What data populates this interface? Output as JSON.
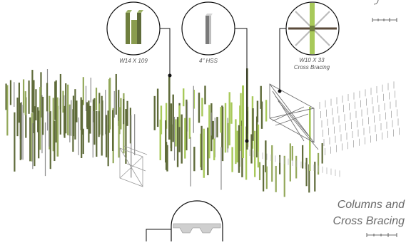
{
  "title": {
    "line1": "Columns and",
    "line2": "Cross Bracing"
  },
  "callouts": [
    {
      "label": "W14 X 109"
    },
    {
      "label": "4\" HSS"
    },
    {
      "label_line1": "W10 X 33",
      "label_line2": "Cross Bracing"
    }
  ],
  "colors": {
    "column_dark": "#5f6b3a",
    "column_light": "#93a85a",
    "column_bright": "#a8c95a",
    "hss_grey": "#8c8c8c",
    "ink": "#222222"
  },
  "icons": [
    "w-beam-icon",
    "hss-tube-icon",
    "cross-bracing-icon",
    "scale-bar-icon",
    "roof-deck-icon"
  ]
}
